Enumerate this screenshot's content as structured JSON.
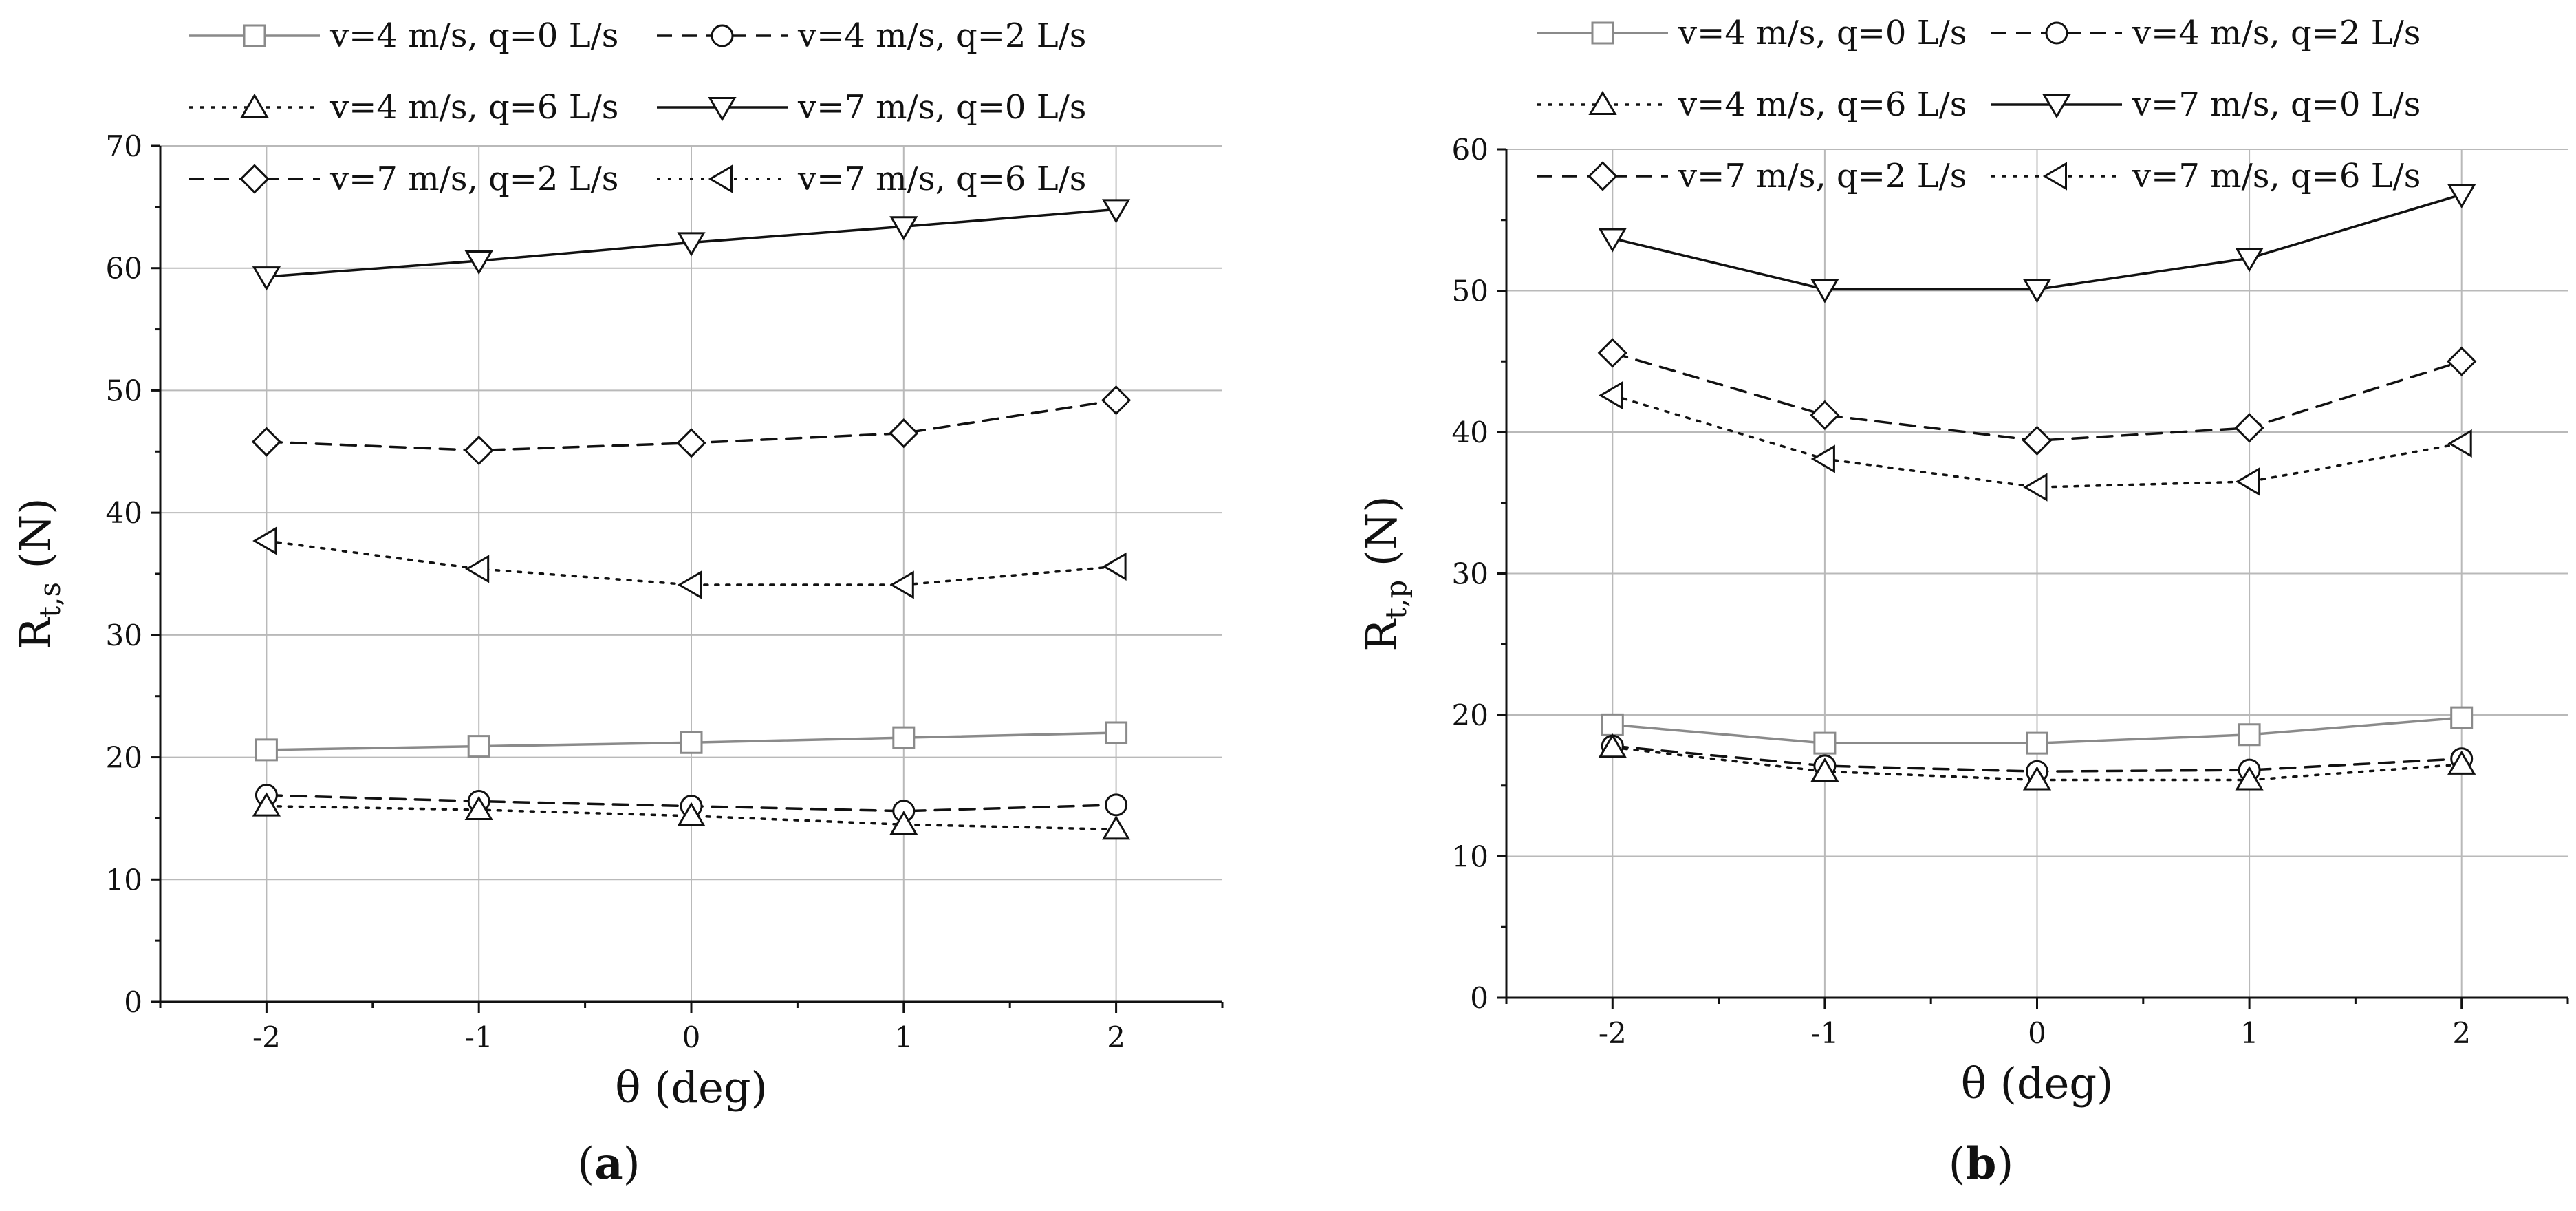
{
  "chart_data": [
    {
      "type": "line",
      "panel_label": "(a)",
      "xlabel": "θ (deg)",
      "ylabel": "R",
      "ylabel_sub": "t,s",
      "ylabel_unit": " (N)",
      "xlim": [
        -2.5,
        2.5
      ],
      "ylim": [
        0,
        70
      ],
      "x_ticks": [
        -2,
        -1,
        0,
        1,
        2
      ],
      "y_ticks": [
        0,
        10,
        20,
        30,
        40,
        50,
        60,
        70
      ],
      "grid": true,
      "legend_position": "top",
      "x": [
        -2,
        -1,
        0,
        1,
        2
      ],
      "series": [
        {
          "name": "v=4 m/s, q=0 L/s",
          "values": [
            20.6,
            20.9,
            21.2,
            21.6,
            22.0
          ],
          "marker": "square",
          "line": "solid",
          "color": "#8a8a8a"
        },
        {
          "name": "v=4 m/s, q=2 L/s",
          "values": [
            16.9,
            16.4,
            16.0,
            15.6,
            16.1
          ],
          "marker": "circle",
          "line": "dashed",
          "color": "#111111"
        },
        {
          "name": "v=4 m/s, q=6 L/s",
          "values": [
            16.0,
            15.7,
            15.2,
            14.5,
            14.1
          ],
          "marker": "triangle-up",
          "line": "dotted",
          "color": "#111111"
        },
        {
          "name": "v=7 m/s, q=0 L/s",
          "values": [
            59.3,
            60.6,
            62.1,
            63.4,
            64.8
          ],
          "marker": "triangle-down",
          "line": "solid",
          "color": "#111111"
        },
        {
          "name": "v=7 m/s, q=2 L/s",
          "values": [
            45.8,
            45.1,
            45.7,
            46.5,
            49.2
          ],
          "marker": "diamond",
          "line": "dashed",
          "color": "#111111"
        },
        {
          "name": "v=7 m/s, q=6 L/s",
          "values": [
            37.7,
            35.4,
            34.1,
            34.1,
            35.6
          ],
          "marker": "triangle-left",
          "line": "dotted",
          "color": "#111111"
        }
      ]
    },
    {
      "type": "line",
      "panel_label": "(b)",
      "xlabel": "θ (deg)",
      "ylabel": "R",
      "ylabel_sub": "t,p",
      "ylabel_unit": " (N)",
      "xlim": [
        -2.5,
        2.5
      ],
      "ylim": [
        0,
        60
      ],
      "x_ticks": [
        -2,
        -1,
        0,
        1,
        2
      ],
      "y_ticks": [
        0,
        10,
        20,
        30,
        40,
        50,
        60
      ],
      "grid": true,
      "legend_position": "top",
      "x": [
        -2,
        -1,
        0,
        1,
        2
      ],
      "series": [
        {
          "name": "v=4 m/s, q=0 L/s",
          "values": [
            19.3,
            18.0,
            18.0,
            18.6,
            19.8
          ],
          "marker": "square",
          "line": "solid",
          "color": "#8a8a8a"
        },
        {
          "name": "v=4 m/s, q=2 L/s",
          "values": [
            17.8,
            16.4,
            16.0,
            16.1,
            16.9
          ],
          "marker": "circle",
          "line": "dashed",
          "color": "#111111"
        },
        {
          "name": "v=4 m/s, q=6 L/s",
          "values": [
            17.7,
            16.0,
            15.4,
            15.4,
            16.5
          ],
          "marker": "triangle-up",
          "line": "dotted",
          "color": "#111111"
        },
        {
          "name": "v=7 m/s, q=0 L/s",
          "values": [
            53.7,
            50.1,
            50.1,
            52.3,
            56.8
          ],
          "marker": "triangle-down",
          "line": "solid",
          "color": "#111111"
        },
        {
          "name": "v=7 m/s, q=2 L/s",
          "values": [
            45.6,
            41.2,
            39.4,
            40.3,
            45.0
          ],
          "marker": "diamond",
          "line": "dashed",
          "color": "#111111"
        },
        {
          "name": "v=7 m/s, q=6 L/s",
          "values": [
            42.6,
            38.1,
            36.1,
            36.5,
            39.2
          ],
          "marker": "triangle-left",
          "line": "dotted",
          "color": "#111111"
        }
      ]
    }
  ]
}
